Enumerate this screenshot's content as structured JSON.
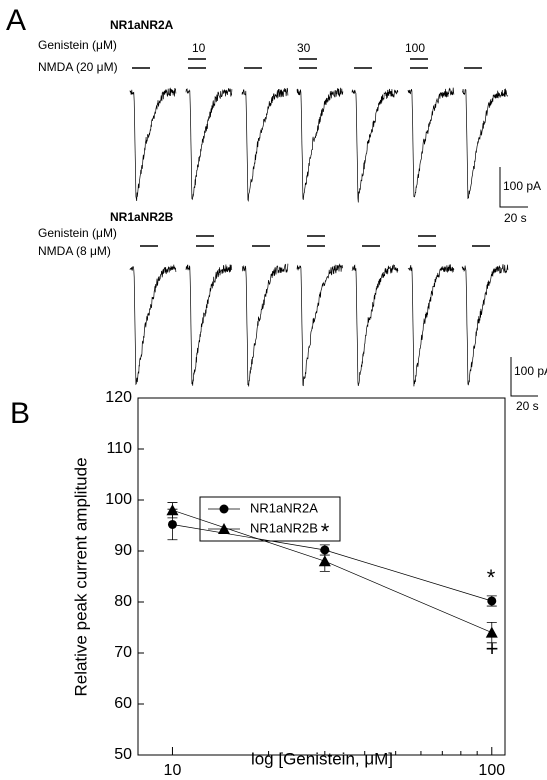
{
  "panel_a": {
    "label": "A",
    "row1": {
      "title": "NR1aNR2A",
      "genistein": "Genistein (μM)",
      "nmda": "NMDA (20 μM)",
      "doses": [
        "10",
        "30",
        "100"
      ],
      "scale_current": "100 pA",
      "scale_time": "20 s"
    },
    "row2": {
      "title": "NR1aNR2B",
      "genistein": "Genistein (μM)",
      "nmda": "NMDA (8 μM)",
      "scale_current": "100 pA",
      "scale_time": "20 s"
    }
  },
  "panel_b": {
    "label": "B"
  },
  "chart_data": {
    "type": "scatter",
    "x_label": "log [Genistein, μM]",
    "y_label": "Relative peak current amplitude",
    "x": [
      10,
      30,
      100
    ],
    "xscale": "log",
    "xlim": [
      7.8,
      110
    ],
    "xticks": [
      10,
      100
    ],
    "xminorticks": [
      20,
      30,
      40,
      50,
      60,
      70,
      80,
      90
    ],
    "ylim": [
      50,
      120
    ],
    "yticks": [
      50,
      60,
      70,
      80,
      90,
      100,
      110,
      120
    ],
    "series": [
      {
        "name": "NR1aNR2A",
        "marker": "circle",
        "color": "#000000",
        "values": [
          95.2,
          90.2,
          80.2
        ],
        "errors": [
          3,
          1,
          1
        ]
      },
      {
        "name": "NR1aNR2B",
        "marker": "triangle",
        "color": "#000000",
        "values": [
          98,
          88,
          74
        ],
        "errors": [
          1.5,
          2,
          2
        ]
      }
    ],
    "annotations": [
      "*",
      "*",
      "+"
    ]
  }
}
